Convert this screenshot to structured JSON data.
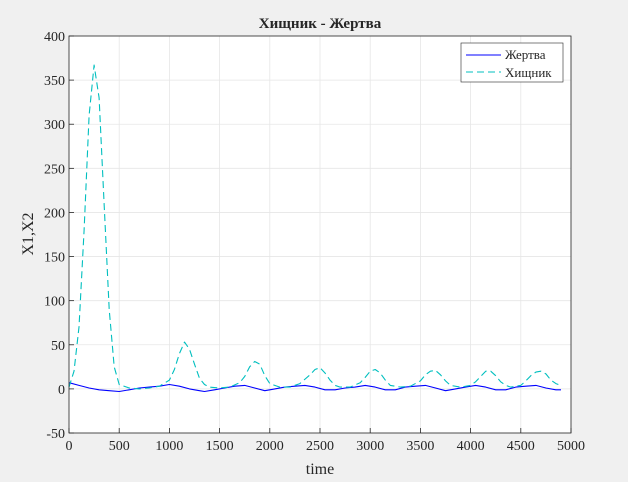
{
  "chart_data": {
    "type": "line",
    "title": "Хищник - Жертва",
    "xlabel": "time",
    "ylabel": "X1,X2",
    "xlim": [
      0,
      5000
    ],
    "ylim": [
      -50,
      400
    ],
    "xticks": [
      0,
      500,
      1000,
      1500,
      2000,
      2500,
      3000,
      3500,
      4000,
      4500,
      5000
    ],
    "yticks": [
      -50,
      0,
      50,
      100,
      150,
      200,
      250,
      300,
      350,
      400
    ],
    "grid": true,
    "legend_position": "top-right",
    "series": [
      {
        "name": "Жертва",
        "color": "#0000ff",
        "style": "solid",
        "x": [
          0,
          100,
          200,
          300,
          400,
          500,
          600,
          700,
          800,
          900,
          1000,
          1100,
          1200,
          1300,
          1350,
          1450,
          1550,
          1650,
          1750,
          1850,
          1950,
          2050,
          2150,
          2250,
          2350,
          2450,
          2550,
          2650,
          2750,
          2850,
          2950,
          3050,
          3150,
          3250,
          3350,
          3450,
          3550,
          3650,
          3750,
          3850,
          3950,
          4050,
          4150,
          4250,
          4350,
          4450,
          4550,
          4650,
          4750,
          4850,
          4900
        ],
        "y": [
          7,
          4,
          1,
          -1,
          -2,
          -3,
          -1,
          1,
          2,
          3,
          5,
          3,
          0,
          -2,
          -3,
          -1,
          1,
          3,
          4,
          1,
          -2,
          0,
          2,
          3,
          4,
          2,
          -1,
          -1,
          1,
          2,
          4,
          2,
          -1,
          -1,
          2,
          3,
          4,
          1,
          -2,
          0,
          2,
          4,
          2,
          -1,
          -1,
          2,
          3,
          4,
          1,
          -1,
          -1
        ]
      },
      {
        "name": "Хищник",
        "color": "#00bfbf",
        "style": "dashed",
        "x": [
          0,
          50,
          100,
          150,
          200,
          250,
          300,
          350,
          400,
          450,
          500,
          600,
          700,
          800,
          900,
          1000,
          1050,
          1100,
          1150,
          1200,
          1250,
          1300,
          1350,
          1400,
          1500,
          1600,
          1700,
          1750,
          1800,
          1850,
          1900,
          1950,
          2000,
          2100,
          2200,
          2300,
          2400,
          2450,
          2500,
          2550,
          2600,
          2650,
          2700,
          2800,
          2900,
          2950,
          3000,
          3050,
          3100,
          3150,
          3200,
          3300,
          3400,
          3500,
          3550,
          3600,
          3650,
          3700,
          3750,
          3800,
          3900,
          4000,
          4050,
          4100,
          4150,
          4200,
          4250,
          4300,
          4350,
          4400,
          4500,
          4550,
          4600,
          4650,
          4700,
          4750,
          4800,
          4850,
          4900
        ],
        "y": [
          2,
          20,
          70,
          180,
          310,
          367,
          330,
          210,
          90,
          25,
          5,
          1,
          0,
          1,
          3,
          10,
          22,
          40,
          53,
          45,
          28,
          12,
          5,
          2,
          1,
          2,
          7,
          14,
          25,
          31,
          28,
          15,
          6,
          2,
          2,
          6,
          16,
          22,
          24,
          18,
          10,
          4,
          2,
          2,
          7,
          13,
          20,
          22,
          18,
          10,
          4,
          2,
          3,
          9,
          16,
          20,
          21,
          16,
          9,
          4,
          2,
          4,
          8,
          14,
          20,
          20,
          15,
          8,
          4,
          2,
          4,
          9,
          15,
          19,
          20,
          17,
          10,
          6,
          4
        ]
      }
    ]
  }
}
